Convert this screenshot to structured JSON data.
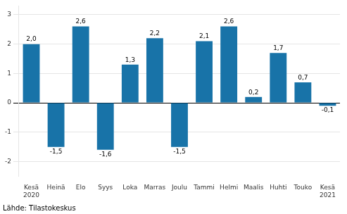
{
  "chart_data": {
    "type": "bar",
    "categories": [
      "Kesä\n2020",
      "Heinä",
      "Elo",
      "Syys",
      "Loka",
      "Marras",
      "Joulu",
      "Tammi",
      "Helmi",
      "Maalis",
      "Huhti",
      "Touko",
      "Kesä\n2021"
    ],
    "values": [
      2.0,
      -1.5,
      2.6,
      -1.6,
      1.3,
      2.2,
      -1.5,
      2.1,
      2.6,
      0.2,
      1.7,
      0.7,
      -0.1
    ],
    "value_labels": [
      "2,0",
      "-1,5",
      "2,6",
      "-1,6",
      "1,3",
      "2,2",
      "-1,5",
      "2,1",
      "2,6",
      "0,2",
      "1,7",
      "0,7",
      "-0,1"
    ],
    "data_labels": true,
    "color": "#1873a8",
    "ylim": [
      -2.5,
      3.3
    ],
    "yticks": [
      -2,
      -1,
      0,
      1,
      2,
      3
    ],
    "grid": true,
    "annotation": "Lähde: Tilastokeskus"
  }
}
